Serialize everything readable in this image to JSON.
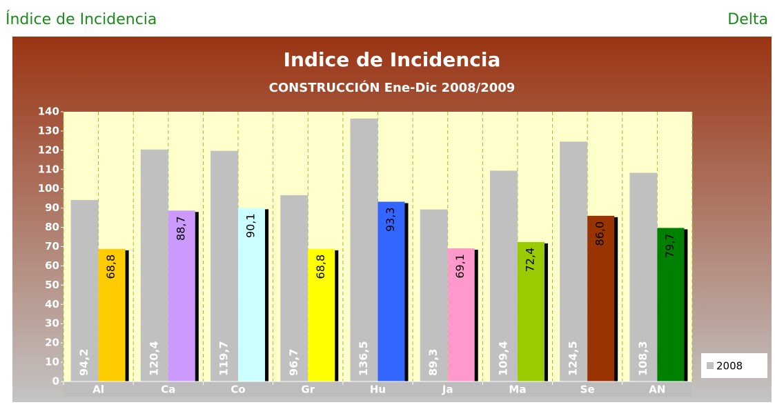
{
  "header": {
    "title": "Índice de Incidencia",
    "right": "Delta"
  },
  "chart_data": {
    "type": "bar",
    "title": "Indice de Incidencia",
    "subtitle": "CONSTRUCCIÓN Ene-Dic 2008/2009",
    "categories": [
      "Al",
      "Ca",
      "Co",
      "Gr",
      "Hu",
      "Ja",
      "Ma",
      "Se",
      "AN"
    ],
    "series": [
      {
        "name": "2008",
        "color": "#c0c0c0",
        "values": [
          94.2,
          120.4,
          119.7,
          96.7,
          136.5,
          89.3,
          109.4,
          124.5,
          108.3
        ],
        "value_labels": [
          "94,2",
          "120,4",
          "119,7",
          "96,7",
          "136,5",
          "89,3",
          "109,4",
          "124,5",
          "108,3"
        ]
      },
      {
        "colors": [
          "#ffcc00",
          "#cc99ff",
          "#ccffff",
          "#ffff00",
          "#3366ff",
          "#ff99cc",
          "#99cc00",
          "#993300",
          "#008000"
        ],
        "values": [
          68.8,
          88.7,
          90.1,
          68.8,
          93.3,
          69.1,
          72.4,
          86.0,
          79.7
        ],
        "value_labels": [
          "68,8",
          "88,7",
          "90,1",
          "68,8",
          "93,3",
          "69,1",
          "72,4",
          "86,0",
          "79,7"
        ]
      }
    ],
    "ylim": [
      0,
      140
    ],
    "yticks": [
      0,
      10,
      20,
      30,
      40,
      50,
      60,
      70,
      80,
      90,
      100,
      110,
      120,
      130,
      140
    ],
    "grid": true,
    "legend": "lower right"
  }
}
